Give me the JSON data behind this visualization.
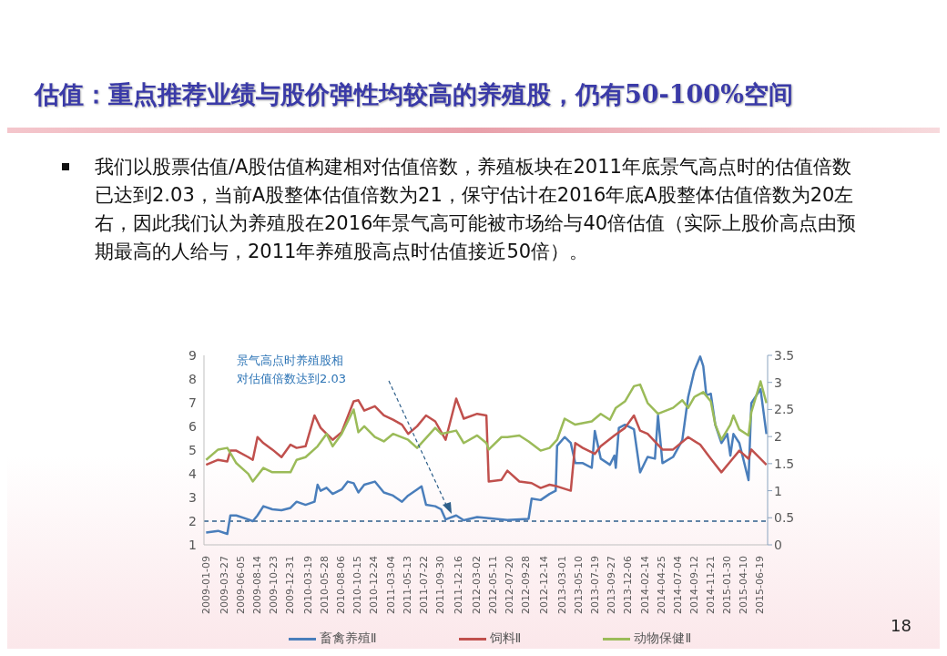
{
  "chart_data": {
    "type": "line",
    "title": "估值：重点推荐业绩与股价弹性均较高的养殖股，仍有50-100%空间",
    "annotations": [
      "我们以股票估值/A股估值构建相对估值倍数，养殖板块在2011年底景气高点时的估值倍数已达到2.03，当前A股整体估值倍数为21，保守估计在2016年底A股整体估值倍数为20左右，因此我们认为养殖股在2016年景气高可能被市场给与40倍估值（实际上股价高点由预期最高的人给与，2011年养殖股高点时估值接近50倍）。",
      "景气高点时养殖股相对估值倍数达到2.03",
      "18"
    ],
    "xlim": [
      "2009-01-01",
      "2015-07-20"
    ],
    "xticks": [
      "2009-01-09",
      "2009-03-27",
      "2009-06-05",
      "2009-08-14",
      "2009-10-23",
      "2009-12-31",
      "2010-03-19",
      "2010-05-28",
      "2010-08-06",
      "2010-10-15",
      "2010-12-24",
      "2011-03-04",
      "2011-05-13",
      "2011-07-22",
      "2011-09-30",
      "2011-12-16",
      "2012-03-02",
      "2012-05-11",
      "2012-07-20",
      "2012-09-28",
      "2012-12-14",
      "2013-03-01",
      "2013-05-10",
      "2013-07-19",
      "2013-09-27",
      "2013-12-06",
      "2014-02-14",
      "2014-04-25",
      "2014-07-04",
      "2014-09-12",
      "2014-11-21",
      "2015-01-30",
      "2015-04-10",
      "2015-06-19"
    ],
    "ylim": [
      1,
      9
    ],
    "yticks": [
      1,
      2,
      3,
      4,
      5,
      6,
      7,
      8,
      9
    ],
    "y2lim": [
      0,
      3.5
    ],
    "y2ticks": [
      0,
      0.5,
      1,
      1.5,
      2,
      2.5,
      3,
      3.5
    ],
    "grid": false,
    "legend": "bottom",
    "marker": "none",
    "line_style": "solid",
    "ref_lines": [
      {
        "axis": "y",
        "value": 2,
        "color": "#2e5f8a",
        "line_style": "dashed"
      }
    ],
    "series": [
      {
        "name": "畜禽养殖Ⅱ",
        "color": "#4a7ebb",
        "x": [
          "2009-01-10",
          "2009-03-02",
          "2009-04-10",
          "2009-04-23",
          "2009-05-18",
          "2009-07-08",
          "2009-07-27",
          "2009-08-16",
          "2009-09-10",
          "2009-10-18",
          "2009-11-26",
          "2010-01-03",
          "2010-01-29",
          "2010-03-08",
          "2010-04-15",
          "2010-04-28",
          "2010-05-11",
          "2010-06-05",
          "2010-07-01",
          "2010-08-08",
          "2010-09-03",
          "2010-09-28",
          "2010-10-18",
          "2010-11-12",
          "2010-12-27",
          "2011-02-03",
          "2011-03-14",
          "2011-04-21",
          "2011-05-17",
          "2011-06-24",
          "2011-07-13",
          "2011-08-01",
          "2011-09-09",
          "2011-10-04",
          "2011-10-23",
          "2011-12-07",
          "2012-01-08",
          "2012-03-05",
          "2012-07-11",
          "2012-10-09",
          "2012-10-22",
          "2012-11-29",
          "2013-01-06",
          "2013-02-01",
          "2013-02-07",
          "2013-03-11",
          "2013-04-06",
          "2013-04-25",
          "2013-05-27",
          "2013-07-04",
          "2013-07-17",
          "2013-08-11",
          "2013-09-19",
          "2013-10-08",
          "2013-10-14",
          "2013-10-27",
          "2013-11-22",
          "2013-12-30",
          "2014-01-25",
          "2014-02-26",
          "2014-03-29",
          "2014-04-11",
          "2014-04-30",
          "2014-06-14",
          "2014-07-23",
          "2014-08-17",
          "2014-09-12",
          "2014-10-07",
          "2014-10-20",
          "2014-11-02",
          "2014-11-21",
          "2014-12-10",
          "2015-01-05",
          "2015-01-30",
          "2015-02-12",
          "2015-02-25",
          "2015-03-22",
          "2015-04-30",
          "2015-05-12",
          "2015-06-20",
          "2015-07-15"
        ],
        "values": [
          1.52,
          1.59,
          1.46,
          2.24,
          2.24,
          2.07,
          2.0,
          2.24,
          2.63,
          2.5,
          2.46,
          2.56,
          2.82,
          2.69,
          2.82,
          3.54,
          3.28,
          3.41,
          3.15,
          3.34,
          3.67,
          3.6,
          3.21,
          3.54,
          3.67,
          3.21,
          3.08,
          2.82,
          3.08,
          3.34,
          3.47,
          2.69,
          2.63,
          2.5,
          2.07,
          2.24,
          2.04,
          2.17,
          2.05,
          2.1,
          2.95,
          2.89,
          3.15,
          3.28,
          5.18,
          5.55,
          5.3,
          4.45,
          4.45,
          4.25,
          5.81,
          4.64,
          4.38,
          4.77,
          4.25,
          5.94,
          6.07,
          5.88,
          4.06,
          4.71,
          4.64,
          6.46,
          4.45,
          4.71,
          5.42,
          7.24,
          8.35,
          8.95,
          8.54,
          7.31,
          7.38,
          6.07,
          5.3,
          5.68,
          4.77,
          5.68,
          5.3,
          3.73,
          6.98,
          7.57,
          5.68
        ]
      },
      {
        "name": "饲料Ⅱ",
        "color": "#c0504d",
        "axis": "y2",
        "x": [
          "2009-01-10",
          "2009-03-02",
          "2009-04-10",
          "2009-04-23",
          "2009-05-18",
          "2009-07-08",
          "2009-07-27",
          "2009-08-16",
          "2009-09-10",
          "2009-10-18",
          "2009-11-26",
          "2010-01-03",
          "2010-01-29",
          "2010-03-08",
          "2010-04-15",
          "2010-05-11",
          "2010-06-05",
          "2010-07-01",
          "2010-08-08",
          "2010-09-28",
          "2010-10-18",
          "2010-11-12",
          "2010-12-27",
          "2011-02-03",
          "2011-03-14",
          "2011-04-21",
          "2011-05-17",
          "2011-06-24",
          "2011-08-01",
          "2011-09-09",
          "2011-10-23",
          "2011-12-07",
          "2012-01-08",
          "2012-03-05",
          "2012-04-13",
          "2012-04-23",
          "2012-06-16",
          "2012-07-11",
          "2012-08-31",
          "2012-10-22",
          "2012-11-29",
          "2013-01-06",
          "2013-02-07",
          "2013-04-06",
          "2013-04-25",
          "2013-05-27",
          "2013-07-17",
          "2013-08-11",
          "2013-10-08",
          "2013-11-22",
          "2013-12-30",
          "2014-01-25",
          "2014-02-26",
          "2014-04-30",
          "2014-06-14",
          "2014-08-17",
          "2014-10-07",
          "2014-11-21",
          "2015-01-05",
          "2015-02-12",
          "2015-03-22",
          "2015-04-30",
          "2015-05-12",
          "2015-07-15"
        ],
        "values": [
          1.48,
          1.57,
          1.54,
          1.74,
          1.74,
          1.62,
          1.57,
          1.99,
          1.88,
          1.76,
          1.62,
          1.85,
          1.79,
          1.82,
          2.39,
          2.16,
          2.05,
          1.94,
          2.08,
          2.65,
          2.67,
          2.48,
          2.56,
          2.39,
          2.31,
          2.22,
          2.05,
          2.19,
          2.39,
          2.28,
          1.94,
          2.7,
          2.33,
          2.42,
          2.39,
          1.17,
          1.2,
          1.37,
          1.17,
          1.14,
          1.05,
          1.11,
          1.08,
          1.0,
          1.88,
          1.79,
          1.68,
          1.82,
          2.02,
          2.16,
          2.39,
          2.11,
          2.05,
          1.76,
          1.76,
          1.99,
          1.85,
          1.59,
          1.34,
          1.54,
          1.74,
          1.59,
          1.76,
          1.48
        ]
      },
      {
        "name": "动物保健Ⅱ",
        "color": "#9bbb59",
        "axis": "y2",
        "x": [
          "2009-01-10",
          "2009-03-02",
          "2009-04-10",
          "2009-05-18",
          "2009-07-08",
          "2009-07-27",
          "2009-09-10",
          "2009-10-18",
          "2010-01-03",
          "2010-01-29",
          "2010-03-08",
          "2010-04-28",
          "2010-06-05",
          "2010-07-01",
          "2010-08-08",
          "2010-09-28",
          "2010-10-18",
          "2010-11-12",
          "2010-12-27",
          "2011-02-03",
          "2011-03-14",
          "2011-05-17",
          "2011-06-24",
          "2011-09-09",
          "2011-10-04",
          "2011-12-07",
          "2012-01-08",
          "2012-03-05",
          "2012-04-13",
          "2012-04-23",
          "2012-06-16",
          "2012-07-11",
          "2012-08-31",
          "2012-10-09",
          "2012-11-29",
          "2013-01-06",
          "2013-02-07",
          "2013-03-11",
          "2013-04-25",
          "2013-07-04",
          "2013-08-11",
          "2013-09-19",
          "2013-10-14",
          "2013-11-22",
          "2013-12-30",
          "2014-01-25",
          "2014-02-26",
          "2014-04-11",
          "2014-06-14",
          "2014-07-23",
          "2014-08-17",
          "2014-09-12",
          "2014-10-20",
          "2014-11-21",
          "2014-12-10",
          "2015-01-05",
          "2015-02-12",
          "2015-02-25",
          "2015-03-22",
          "2015-04-30",
          "2015-05-12",
          "2015-06-20",
          "2015-07-15"
        ],
        "values": [
          1.57,
          1.76,
          1.79,
          1.51,
          1.31,
          1.17,
          1.42,
          1.34,
          1.34,
          1.57,
          1.62,
          1.82,
          2.05,
          1.82,
          2.05,
          2.5,
          2.08,
          2.19,
          1.99,
          1.91,
          2.05,
          1.94,
          1.79,
          2.16,
          2.05,
          2.11,
          1.88,
          2.02,
          1.88,
          1.76,
          1.99,
          1.99,
          2.02,
          1.91,
          1.74,
          1.79,
          1.94,
          2.33,
          2.22,
          2.28,
          2.42,
          2.31,
          2.53,
          2.65,
          2.93,
          2.96,
          2.62,
          2.42,
          2.53,
          2.67,
          2.53,
          2.73,
          2.82,
          2.65,
          2.22,
          1.94,
          2.22,
          2.39,
          2.13,
          2.02,
          2.45,
          3.02,
          2.62
        ]
      }
    ]
  }
}
